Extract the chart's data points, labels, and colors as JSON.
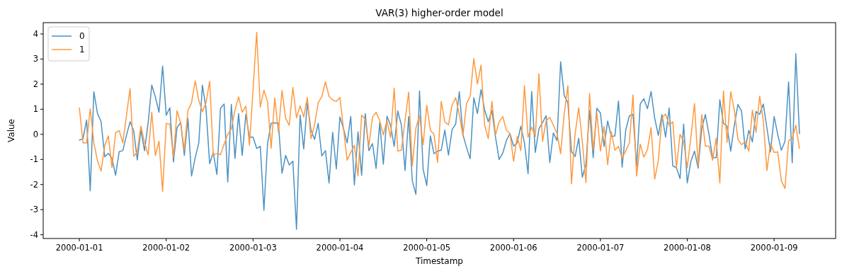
{
  "chart_data": {
    "type": "line",
    "title": "VAR(3) higher-order model",
    "xlabel": "Timestamp",
    "ylabel": "Value",
    "x": [
      "2000-01-01T00:00",
      "2000-01-01T01:00",
      "2000-01-01T02:00",
      "2000-01-01T03:00",
      "2000-01-01T04:00",
      "2000-01-01T05:00",
      "2000-01-01T06:00",
      "2000-01-01T07:00",
      "2000-01-01T08:00",
      "2000-01-01T09:00",
      "2000-01-01T10:00",
      "2000-01-01T11:00",
      "2000-01-01T12:00",
      "2000-01-01T13:00",
      "2000-01-01T14:00",
      "2000-01-01T15:00",
      "2000-01-01T16:00",
      "2000-01-01T17:00",
      "2000-01-01T18:00",
      "2000-01-01T19:00",
      "2000-01-01T20:00",
      "2000-01-01T21:00",
      "2000-01-01T22:00",
      "2000-01-01T23:00",
      "2000-01-02T00:00",
      "2000-01-02T01:00",
      "2000-01-02T02:00",
      "2000-01-02T03:00",
      "2000-01-02T04:00",
      "2000-01-02T05:00",
      "2000-01-02T06:00",
      "2000-01-02T07:00",
      "2000-01-02T08:00",
      "2000-01-02T09:00",
      "2000-01-02T10:00",
      "2000-01-02T11:00",
      "2000-01-02T12:00",
      "2000-01-02T13:00",
      "2000-01-02T14:00",
      "2000-01-02T15:00",
      "2000-01-02T16:00",
      "2000-01-02T17:00",
      "2000-01-02T18:00",
      "2000-01-02T19:00",
      "2000-01-02T20:00",
      "2000-01-02T21:00",
      "2000-01-02T22:00",
      "2000-01-02T23:00",
      "2000-01-03T00:00",
      "2000-01-03T01:00",
      "2000-01-03T02:00",
      "2000-01-03T03:00",
      "2000-01-03T04:00",
      "2000-01-03T05:00",
      "2000-01-03T06:00",
      "2000-01-03T07:00",
      "2000-01-03T08:00",
      "2000-01-03T09:00",
      "2000-01-03T10:00",
      "2000-01-03T11:00",
      "2000-01-03T12:00",
      "2000-01-03T13:00",
      "2000-01-03T14:00",
      "2000-01-03T15:00",
      "2000-01-03T16:00",
      "2000-01-03T17:00",
      "2000-01-03T18:00",
      "2000-01-03T19:00",
      "2000-01-03T20:00",
      "2000-01-03T21:00",
      "2000-01-03T22:00",
      "2000-01-03T23:00",
      "2000-01-04T00:00",
      "2000-01-04T01:00",
      "2000-01-04T02:00",
      "2000-01-04T03:00",
      "2000-01-04T04:00",
      "2000-01-04T05:00",
      "2000-01-04T06:00",
      "2000-01-04T07:00",
      "2000-01-04T08:00",
      "2000-01-04T09:00",
      "2000-01-04T10:00",
      "2000-01-04T11:00",
      "2000-01-04T12:00",
      "2000-01-04T13:00",
      "2000-01-04T14:00",
      "2000-01-04T15:00",
      "2000-01-04T16:00",
      "2000-01-04T17:00",
      "2000-01-04T18:00",
      "2000-01-04T19:00",
      "2000-01-04T20:00",
      "2000-01-04T21:00",
      "2000-01-04T22:00",
      "2000-01-04T23:00",
      "2000-01-05T00:00",
      "2000-01-05T01:00",
      "2000-01-05T02:00",
      "2000-01-05T03:00",
      "2000-01-05T04:00",
      "2000-01-05T05:00",
      "2000-01-05T06:00",
      "2000-01-05T07:00",
      "2000-01-05T08:00",
      "2000-01-05T09:00",
      "2000-01-05T10:00",
      "2000-01-05T11:00",
      "2000-01-05T12:00",
      "2000-01-05T13:00",
      "2000-01-05T14:00",
      "2000-01-05T15:00",
      "2000-01-05T16:00",
      "2000-01-05T17:00",
      "2000-01-05T18:00",
      "2000-01-05T19:00",
      "2000-01-05T20:00",
      "2000-01-05T21:00",
      "2000-01-05T22:00",
      "2000-01-05T23:00",
      "2000-01-06T00:00",
      "2000-01-06T01:00",
      "2000-01-06T02:00",
      "2000-01-06T03:00",
      "2000-01-06T04:00",
      "2000-01-06T05:00",
      "2000-01-06T06:00",
      "2000-01-06T07:00",
      "2000-01-06T08:00",
      "2000-01-06T09:00",
      "2000-01-06T10:00",
      "2000-01-06T11:00",
      "2000-01-06T12:00",
      "2000-01-06T13:00",
      "2000-01-06T14:00",
      "2000-01-06T15:00",
      "2000-01-06T16:00",
      "2000-01-06T17:00",
      "2000-01-06T18:00",
      "2000-01-06T19:00",
      "2000-01-06T20:00",
      "2000-01-06T21:00",
      "2000-01-06T22:00",
      "2000-01-06T23:00",
      "2000-01-07T00:00",
      "2000-01-07T01:00",
      "2000-01-07T02:00",
      "2000-01-07T03:00",
      "2000-01-07T04:00",
      "2000-01-07T05:00",
      "2000-01-07T06:00",
      "2000-01-07T07:00",
      "2000-01-07T08:00",
      "2000-01-07T09:00",
      "2000-01-07T10:00",
      "2000-01-07T11:00",
      "2000-01-07T12:00",
      "2000-01-07T13:00",
      "2000-01-07T14:00",
      "2000-01-07T15:00",
      "2000-01-07T16:00",
      "2000-01-07T17:00",
      "2000-01-07T18:00",
      "2000-01-07T19:00",
      "2000-01-07T20:00",
      "2000-01-07T21:00",
      "2000-01-07T22:00",
      "2000-01-07T23:00",
      "2000-01-08T00:00",
      "2000-01-08T01:00",
      "2000-01-08T02:00",
      "2000-01-08T03:00",
      "2000-01-08T04:00",
      "2000-01-08T05:00",
      "2000-01-08T06:00",
      "2000-01-08T07:00",
      "2000-01-08T08:00",
      "2000-01-08T09:00",
      "2000-01-08T10:00",
      "2000-01-08T11:00",
      "2000-01-08T12:00",
      "2000-01-08T13:00",
      "2000-01-08T14:00",
      "2000-01-08T15:00",
      "2000-01-08T16:00",
      "2000-01-08T17:00",
      "2000-01-08T18:00",
      "2000-01-08T19:00",
      "2000-01-08T20:00",
      "2000-01-08T21:00",
      "2000-01-08T22:00",
      "2000-01-08T23:00",
      "2000-01-09T00:00",
      "2000-01-09T01:00",
      "2000-01-09T02:00",
      "2000-01-09T03:00",
      "2000-01-09T04:00",
      "2000-01-09T05:00",
      "2000-01-09T06:00",
      "2000-01-09T07:00"
    ],
    "series": [
      {
        "name": "0",
        "color": "#4c92c3",
        "values": [
          -0.23,
          -0.17,
          0.57,
          -2.25,
          1.7,
          0.83,
          0.51,
          -0.89,
          -0.76,
          -0.95,
          -1.63,
          -0.69,
          -0.65,
          -0.05,
          0.5,
          0.15,
          -1.02,
          0.17,
          -0.65,
          0.45,
          1.96,
          1.49,
          0.88,
          2.72,
          0.76,
          1.06,
          -1.1,
          0.27,
          0.47,
          -0.84,
          0.63,
          -1.66,
          -0.94,
          -0.34,
          1.96,
          1.02,
          -1.17,
          -0.72,
          -1.6,
          1.04,
          1.21,
          -1.9,
          1.19,
          -0.96,
          0.83,
          -0.84,
          0.79,
          -0.11,
          -0.11,
          -0.56,
          -0.48,
          -3.03,
          -0.37,
          0.44,
          0.46,
          0.44,
          -1.55,
          -0.84,
          -1.22,
          -1.07,
          -3.78,
          0.77,
          -0.58,
          1.26,
          0.17,
          -0.2,
          0.44,
          -0.86,
          -0.65,
          -1.94,
          0.08,
          -1.38,
          0.69,
          0.22,
          -0.34,
          0.71,
          -2.02,
          0.1,
          -1.63,
          0.83,
          -0.65,
          -0.37,
          -1.36,
          0.47,
          -1.19,
          0.72,
          0.36,
          -0.48,
          0.93,
          0.36,
          -1.44,
          0.71,
          -1.85,
          -2.39,
          1.73,
          -1.38,
          -2.04,
          -0.06,
          -0.77,
          -0.67,
          -0.63,
          0.17,
          -0.83,
          0.19,
          0.41,
          1.7,
          -0.01,
          -0.53,
          -0.97,
          1.46,
          0.83,
          1.78,
          0.97,
          0.5,
          0.95,
          -0.11,
          -1.0,
          -0.75,
          -0.25,
          0.03,
          -0.47,
          -0.34,
          0.32,
          -0.34,
          -1.57,
          1.71,
          -0.72,
          0.22,
          0.47,
          0.74,
          -1.12,
          0.06,
          -0.25,
          2.89,
          1.54,
          1.26,
          -0.69,
          -0.88,
          -0.16,
          -1.71,
          -1.19,
          0.95,
          -0.93,
          1.04,
          0.85,
          -0.48,
          0.53,
          -0.09,
          -0.06,
          1.33,
          -1.31,
          0.17,
          0.74,
          0.8,
          -1.29,
          1.21,
          1.42,
          1.02,
          1.71,
          0.64,
          -0.04,
          0.79,
          -0.11,
          1.05,
          -1.26,
          -1.33,
          -1.76,
          0.41,
          -1.94,
          -1.07,
          -0.67,
          -1.35,
          0.24,
          0.79,
          0,
          -0.93,
          -0.93,
          1.38,
          0.44,
          0.32,
          -0.67,
          0.36,
          1.19,
          0.93,
          -0.58,
          0.16,
          -0.3,
          0.91,
          0.8,
          1.21,
          0.27,
          -0.7,
          0.71,
          0,
          -0.63,
          -0.28,
          2.09,
          -1.13,
          3.21,
          0.03
        ]
      },
      {
        "name": "1",
        "color": "#ff993e",
        "values": [
          1.05,
          -0.34,
          -0.34,
          1.02,
          -0.34,
          -1.05,
          -1.46,
          -0.44,
          -0.06,
          -1.33,
          0.06,
          0.15,
          -0.34,
          0.74,
          1.82,
          -0.87,
          -0.7,
          0.33,
          -0.34,
          -0.82,
          0.88,
          -0.84,
          -0.27,
          -2.27,
          0.43,
          0.41,
          -0.91,
          0.95,
          0.44,
          -0.63,
          0.95,
          1.26,
          2.13,
          1.35,
          0.9,
          1.26,
          2.12,
          -0.81,
          -0.77,
          -0.81,
          -0.39,
          0,
          0.22,
          0.97,
          1.49,
          0.88,
          1.12,
          -0.44,
          1.8,
          4.06,
          1.09,
          1.76,
          1.31,
          -0.55,
          1.45,
          0.08,
          1.75,
          0.64,
          0.36,
          1.87,
          0.66,
          1.13,
          0.69,
          1.47,
          -0.17,
          0.38,
          1.26,
          1.51,
          2.09,
          1.51,
          1.37,
          1.31,
          1.47,
          0.22,
          -1.03,
          -0.72,
          -0.44,
          -1.66,
          0.77,
          0.6,
          -0.48,
          0.69,
          0.88,
          0.55,
          -0.02,
          0.55,
          -0.13,
          1.84,
          -0.67,
          -0.63,
          0.55,
          1.68,
          -1.26,
          0.25,
          0.74,
          -0.41,
          1.16,
          0.16,
          0,
          -1.12,
          1.31,
          0.5,
          0.38,
          1.16,
          1.46,
          0.79,
          -0.06,
          1.23,
          1.51,
          3.02,
          2.01,
          2.76,
          0.36,
          -0.17,
          1.32,
          -0.01,
          0.5,
          0.71,
          0.17,
          0.03,
          -1.07,
          -0.09,
          -0.65,
          1.94,
          -0.11,
          0.29,
          -0.09,
          2.42,
          -0.28,
          0.55,
          0.67,
          0.36,
          0.03,
          -0.77,
          0.83,
          1.94,
          -1.97,
          0.03,
          1.06,
          -0.3,
          -1.93,
          1.63,
          -0.63,
          0.85,
          -0.67,
          0.32,
          -1.21,
          0.1,
          -0.63,
          -0.48,
          -0.96,
          -0.65,
          -0.34,
          1.57,
          -1.66,
          -0.39,
          -0.91,
          -0.61,
          0.27,
          -1.78,
          -1.05,
          0.64,
          0.81,
          0.36,
          0.5,
          -1.33,
          0,
          -0.28,
          -1.33,
          -0.11,
          1.23,
          -1.26,
          0.79,
          -0.47,
          -0.47,
          -1.03,
          -0.16,
          -1.94,
          1.73,
          -0.32,
          1.7,
          0.97,
          -0.2,
          -0.41,
          -0.3,
          -0.67,
          0.97,
          0.08,
          1.52,
          0.55,
          -1.44,
          -0.37,
          -0.72,
          -0.7,
          -1.85,
          -2.16,
          -0.25,
          -0.16,
          0.36,
          -0.56
        ]
      }
    ],
    "xlim": [
      "1999-12-31T14:00",
      "2000-01-09T17:00"
    ],
    "xticks": [
      "2000-01-01",
      "2000-01-02",
      "2000-01-03",
      "2000-01-04",
      "2000-01-05",
      "2000-01-06",
      "2000-01-07",
      "2000-01-08",
      "2000-01-09"
    ],
    "ylim": [
      -4.15,
      4.45
    ],
    "yticks": [
      -4,
      -3,
      -2,
      -1,
      0,
      1,
      2,
      3,
      4
    ],
    "legend": "top left",
    "marker": "none",
    "line_style": "solid"
  }
}
